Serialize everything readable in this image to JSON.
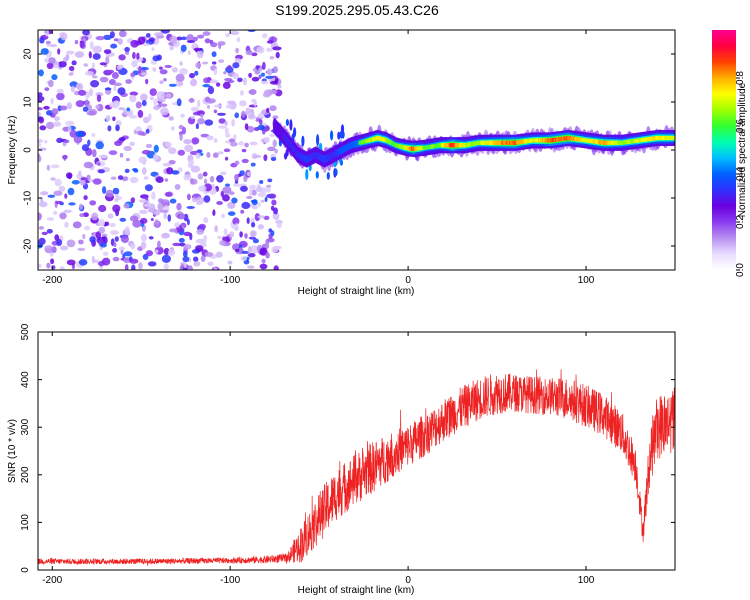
{
  "page": {
    "title": "S199.2025.295.05.43.C26"
  },
  "chart_data": [
    {
      "type": "heatmap",
      "name": "spectrogram",
      "xlabel": "Height of straight line (km)",
      "ylabel": "Frequency (Hz)",
      "xlim": [
        -208,
        150
      ],
      "ylim": [
        -25,
        25
      ],
      "xticks": [
        -200,
        -100,
        0,
        100
      ],
      "yticks": [
        -20,
        -10,
        0,
        10,
        20
      ],
      "colorbar": {
        "label": "Normalized spectral amplitude",
        "range": [
          0,
          1
        ],
        "ticks": [
          "0.0",
          "0.2",
          "0.4",
          "0.6",
          "0.8"
        ],
        "colors": [
          "#ffffff",
          "#e8dcff",
          "#b890f0",
          "#8a3cf0",
          "#6a00e0",
          "#3030ff",
          "#0060ff",
          "#00c0ff",
          "#00ffb0",
          "#30ff30",
          "#a0ff00",
          "#ffff00",
          "#ffb000",
          "#ff4000",
          "#ff0040",
          "#ff0090"
        ]
      },
      "noise_region": {
        "x": [
          -208,
          -72
        ],
        "description_values": "scattered low amplitude 0.1-0.4"
      },
      "ridge": [
        {
          "x": -75,
          "freq": 5,
          "amp": 0.35
        },
        {
          "x": -68,
          "freq": 2,
          "amp": 0.45
        },
        {
          "x": -62,
          "freq": -1,
          "amp": 0.45
        },
        {
          "x": -57,
          "freq": -2,
          "amp": 0.5
        },
        {
          "x": -52,
          "freq": -1,
          "amp": 0.45
        },
        {
          "x": -47,
          "freq": -2,
          "amp": 0.5
        },
        {
          "x": -42,
          "freq": -1,
          "amp": 0.45
        },
        {
          "x": -37,
          "freq": 0,
          "amp": 0.55
        },
        {
          "x": -32,
          "freq": 1,
          "amp": 0.55
        },
        {
          "x": -27,
          "freq": 1.5,
          "amp": 0.6
        },
        {
          "x": -22,
          "freq": 2,
          "amp": 0.65
        },
        {
          "x": -17,
          "freq": 2.5,
          "amp": 0.75
        },
        {
          "x": -12,
          "freq": 2,
          "amp": 0.7
        },
        {
          "x": -7,
          "freq": 1,
          "amp": 0.6
        },
        {
          "x": -2,
          "freq": 0.5,
          "amp": 0.7
        },
        {
          "x": 3,
          "freq": 0.2,
          "amp": 0.85
        },
        {
          "x": 10,
          "freq": 0.5,
          "amp": 0.6
        },
        {
          "x": 18,
          "freq": 1,
          "amp": 0.65
        },
        {
          "x": 25,
          "freq": 1,
          "amp": 0.9
        },
        {
          "x": 32,
          "freq": 1,
          "amp": 0.7
        },
        {
          "x": 40,
          "freq": 1.5,
          "amp": 0.65
        },
        {
          "x": 50,
          "freq": 1.5,
          "amp": 0.8
        },
        {
          "x": 60,
          "freq": 1.5,
          "amp": 0.85
        },
        {
          "x": 70,
          "freq": 2,
          "amp": 0.7
        },
        {
          "x": 80,
          "freq": 2,
          "amp": 0.85
        },
        {
          "x": 90,
          "freq": 2.5,
          "amp": 0.85
        },
        {
          "x": 100,
          "freq": 2,
          "amp": 0.7
        },
        {
          "x": 110,
          "freq": 1.5,
          "amp": 0.8
        },
        {
          "x": 120,
          "freq": 1.5,
          "amp": 0.65
        },
        {
          "x": 130,
          "freq": 2,
          "amp": 0.7
        },
        {
          "x": 140,
          "freq": 2.5,
          "amp": 0.75
        },
        {
          "x": 150,
          "freq": 2.5,
          "amp": 0.7
        }
      ]
    },
    {
      "type": "line",
      "name": "snr",
      "xlabel": "Height of straight line (km)",
      "ylabel": "SNR (10 * v/v)",
      "xlim": [
        -208,
        150
      ],
      "ylim": [
        0,
        500
      ],
      "xticks": [
        -200,
        -100,
        0,
        100
      ],
      "yticks": [
        0,
        100,
        200,
        300,
        400,
        500
      ],
      "color": "#ee2222",
      "trend": {
        "x": [
          -208,
          -150,
          -100,
          -80,
          -68,
          -60,
          -50,
          -40,
          -30,
          -20,
          -10,
          0,
          10,
          20,
          30,
          40,
          50,
          60,
          70,
          80,
          90,
          100,
          110,
          120,
          128,
          132,
          136,
          140,
          150
        ],
        "y": [
          18,
          18,
          20,
          22,
          25,
          55,
          110,
          160,
          190,
          215,
          240,
          262,
          285,
          315,
          340,
          360,
          372,
          372,
          368,
          365,
          360,
          345,
          325,
          290,
          220,
          80,
          240,
          300,
          320
        ],
        "spread": [
          6,
          6,
          6,
          8,
          10,
          40,
          55,
          55,
          55,
          55,
          50,
          45,
          45,
          45,
          45,
          45,
          45,
          40,
          40,
          40,
          45,
          45,
          45,
          45,
          40,
          25,
          60,
          70,
          70
        ]
      }
    }
  ]
}
